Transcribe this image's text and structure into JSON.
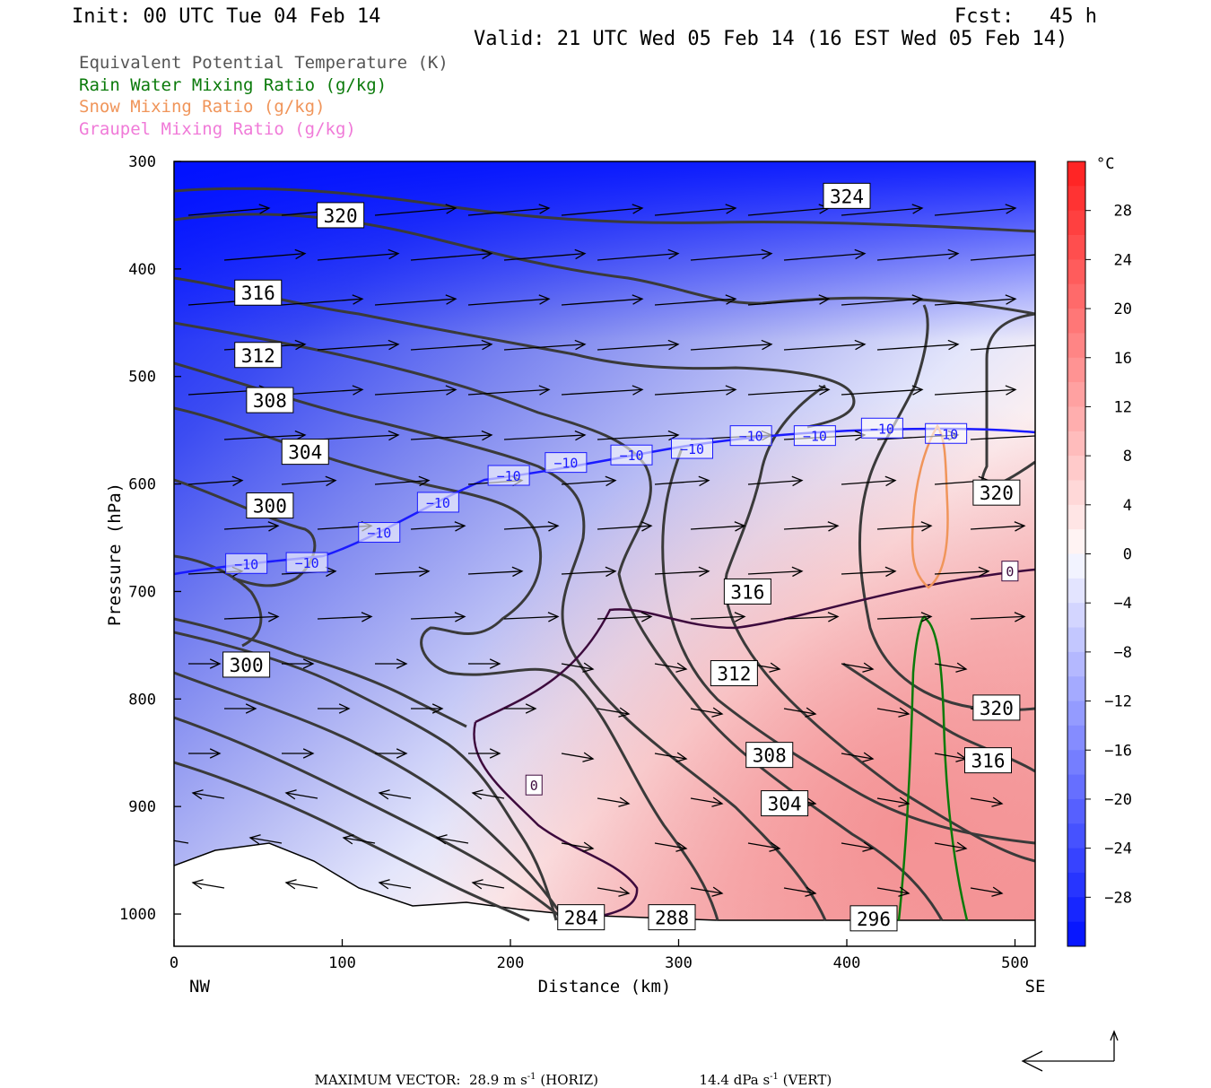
{
  "header": {
    "init": "Init: 00 UTC Tue 04 Feb 14",
    "fcst": "Fcst:   45 h",
    "valid": "Valid: 21 UTC Wed 05 Feb 14 (16 EST Wed 05 Feb 14)"
  },
  "legend": [
    {
      "text": "Equivalent Potential Temperature (K)",
      "color": "#555555"
    },
    {
      "text": "Rain Water Mixing Ratio (g/kg)",
      "color": "#0a7a0a"
    },
    {
      "text": "Snow Mixing Ratio (g/kg)",
      "color": "#f0955a"
    },
    {
      "text": "Graupel Mixing Ratio (g/kg)",
      "color": "#f07ad8"
    }
  ],
  "chart_data": {
    "type": "cross-section",
    "xlabel": "Distance (km)",
    "ylabel": "Pressure (hPa)",
    "x_range": [
      0,
      512
    ],
    "y_range": [
      300,
      1030
    ],
    "x_ticks": [
      0,
      100,
      200,
      300,
      400,
      500
    ],
    "y_ticks": [
      300,
      400,
      500,
      600,
      700,
      800,
      900,
      1000
    ],
    "x_end_labels": {
      "left": "NW",
      "right": "SE"
    },
    "colorbar": {
      "unit": "°C",
      "ticks": [
        28,
        24,
        20,
        16,
        12,
        8,
        4,
        0,
        -4,
        -8,
        -12,
        -16,
        -20,
        -24,
        -28
      ],
      "range": [
        -32,
        32
      ]
    },
    "theta_e_contours": [
      {
        "label": "324",
        "at": [
          400,
          332
        ]
      },
      {
        "label": "320",
        "at": [
          99,
          350
        ]
      },
      {
        "label": "316",
        "at": [
          50,
          422
        ]
      },
      {
        "label": "312",
        "at": [
          50,
          480
        ]
      },
      {
        "label": "308",
        "at": [
          57,
          522
        ]
      },
      {
        "label": "304",
        "at": [
          78,
          570
        ]
      },
      {
        "label": "300",
        "at": [
          57,
          620
        ]
      },
      {
        "label": "316",
        "at": [
          341,
          700
        ]
      },
      {
        "label": "300",
        "at": [
          43,
          768
        ]
      },
      {
        "label": "312",
        "at": [
          333,
          776
        ]
      },
      {
        "label": "320",
        "at": [
          489,
          608
        ]
      },
      {
        "label": "320",
        "at": [
          489,
          808
        ]
      },
      {
        "label": "316",
        "at": [
          484,
          857
        ]
      },
      {
        "label": "308",
        "at": [
          354,
          852
        ]
      },
      {
        "label": "304",
        "at": [
          363,
          897
        ]
      },
      {
        "label": "284",
        "at": [
          242,
          1003
        ]
      },
      {
        "label": "288",
        "at": [
          296,
          1003
        ]
      },
      {
        "label": "296",
        "at": [
          416,
          1004
        ]
      }
    ],
    "isotherm_labels": [
      {
        "label": "−10",
        "at": [
          43,
          674
        ]
      },
      {
        "label": "−10",
        "at": [
          79,
          673
        ]
      },
      {
        "label": "−10",
        "at": [
          122,
          645
        ]
      },
      {
        "label": "−10",
        "at": [
          157,
          617
        ]
      },
      {
        "label": "−10",
        "at": [
          199,
          592
        ]
      },
      {
        "label": "−10",
        "at": [
          233,
          580
        ]
      },
      {
        "label": "−10",
        "at": [
          272,
          573
        ]
      },
      {
        "label": "−10",
        "at": [
          308,
          567
        ]
      },
      {
        "label": "−10",
        "at": [
          343,
          555
        ]
      },
      {
        "label": "−10",
        "at": [
          381,
          555
        ]
      },
      {
        "label": "−10",
        "at": [
          421,
          548
        ]
      },
      {
        "label": "−10",
        "at": [
          459,
          553
        ]
      },
      {
        "label": "0",
        "at": [
          497,
          681
        ]
      },
      {
        "label": "0",
        "at": [
          214,
          880
        ]
      }
    ]
  },
  "footer": {
    "max_vector_label": "MAXIMUM VECTOR:",
    "horiz_value": "28.9 m s",
    "horiz_exp": "-1",
    "horiz_unit": " (HORIZ)",
    "vert_value": "14.4 dPa s",
    "vert_exp": "-1",
    "vert_unit": " (VERT)"
  }
}
